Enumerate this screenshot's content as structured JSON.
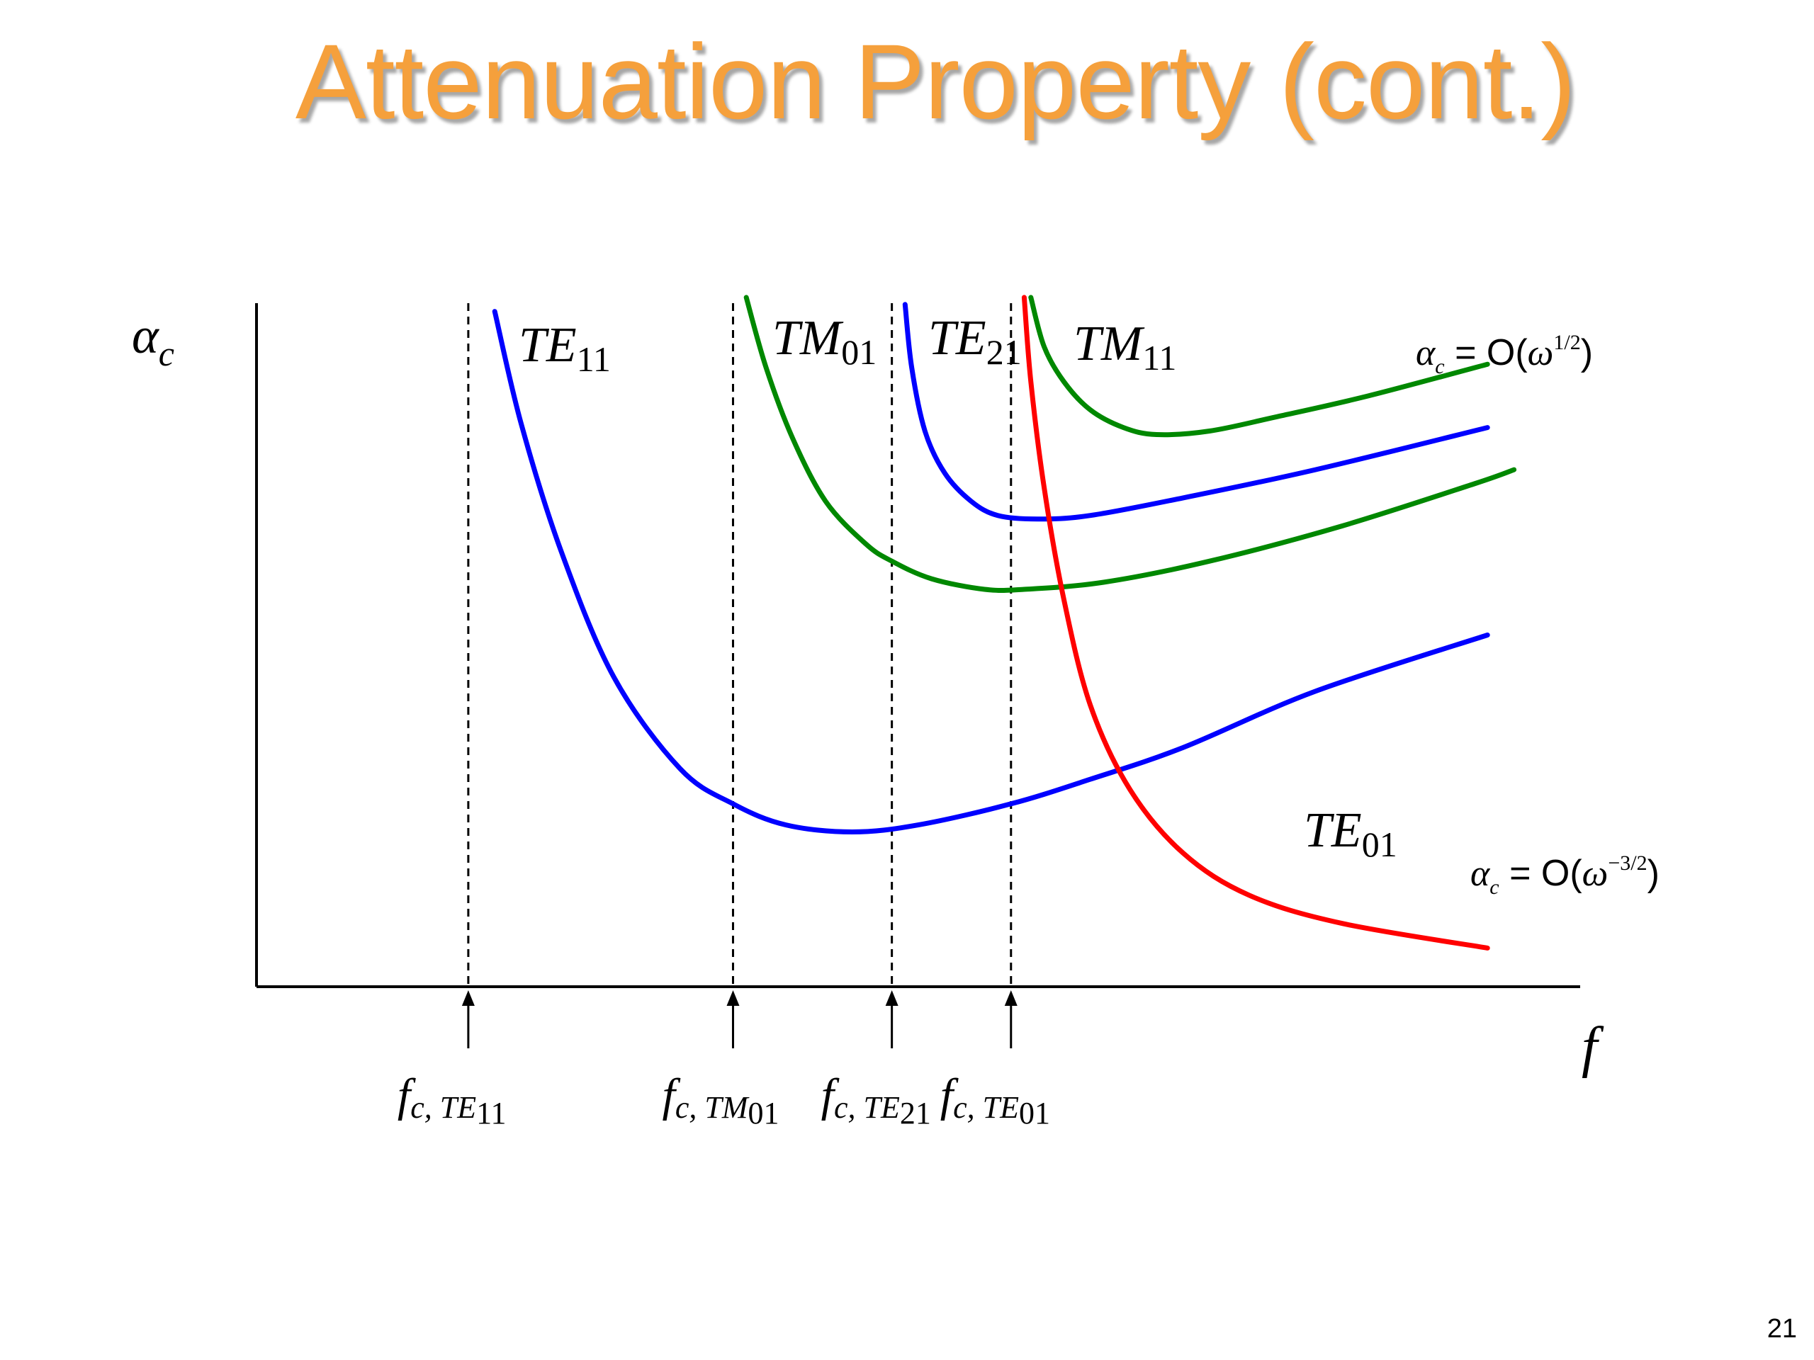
{
  "slide": {
    "title": "Attenuation Property (cont.)",
    "page_number": "21"
  },
  "chart_data": {
    "type": "line",
    "title": "",
    "xlabel": "f",
    "ylabel": "αc",
    "grid": false,
    "xlim": [
      0,
      10
    ],
    "ylim": [
      0,
      10
    ],
    "cutoffs": [
      {
        "name": "fc,TE11",
        "x": 1.6,
        "label_main": "f",
        "label_sub": "c, TE",
        "label_subsub": "11"
      },
      {
        "name": "fc,TM01",
        "x": 3.6,
        "label_main": "f",
        "label_sub": "c, TM",
        "label_subsub": "01"
      },
      {
        "name": "fc,TE21",
        "x": 4.8,
        "label_main": "f",
        "label_sub": "c, TE",
        "label_subsub": "21"
      },
      {
        "name": "fc,TE01",
        "x": 5.7,
        "label_main": "f",
        "label_sub": "c, TE",
        "label_subsub": "01"
      }
    ],
    "series": [
      {
        "name": "TE11",
        "label_main": "TE",
        "label_sub": "11",
        "color": "#0000FF",
        "x": [
          1.8,
          2.0,
          2.3,
          2.7,
          3.2,
          3.6,
          4.0,
          4.5,
          5.0,
          5.7,
          6.3,
          7.0,
          8.0,
          9.3
        ],
        "y": [
          9.6,
          8.0,
          6.2,
          4.4,
          3.1,
          2.6,
          2.3,
          2.2,
          2.3,
          2.6,
          2.95,
          3.4,
          4.2,
          5.0
        ]
      },
      {
        "name": "TM01",
        "label_main": "TM",
        "label_sub": "01",
        "color": "#008800",
        "x": [
          3.7,
          3.85,
          4.05,
          4.3,
          4.6,
          4.8,
          5.1,
          5.5,
          5.8,
          6.4,
          7.2,
          8.2,
          9.2,
          9.5
        ],
        "y": [
          9.8,
          8.8,
          7.8,
          6.9,
          6.3,
          6.05,
          5.8,
          5.65,
          5.65,
          5.75,
          6.05,
          6.55,
          7.15,
          7.35
        ]
      },
      {
        "name": "TE21",
        "label_main": "TE",
        "label_sub": "21",
        "color": "#0000FF",
        "x": [
          4.9,
          4.95,
          5.05,
          5.2,
          5.4,
          5.6,
          5.9,
          6.3,
          7.0,
          8.0,
          9.3
        ],
        "y": [
          9.7,
          8.8,
          7.9,
          7.3,
          6.9,
          6.7,
          6.65,
          6.7,
          6.95,
          7.35,
          7.95
        ]
      },
      {
        "name": "TM11",
        "label_main": "TM",
        "label_sub": "11",
        "color": "#008800",
        "x": [
          5.85,
          5.95,
          6.1,
          6.3,
          6.55,
          6.8,
          7.2,
          7.7,
          8.4,
          9.3
        ],
        "y": [
          9.8,
          9.1,
          8.6,
          8.2,
          7.95,
          7.85,
          7.9,
          8.1,
          8.4,
          8.85
        ]
      },
      {
        "name": "TE01",
        "label_main": "TE",
        "label_sub": "01",
        "color": "#FF0000",
        "x": [
          5.8,
          5.85,
          5.95,
          6.1,
          6.3,
          6.6,
          7.0,
          7.5,
          8.2,
          9.3
        ],
        "y": [
          9.8,
          8.6,
          7.1,
          5.5,
          4.0,
          2.8,
          1.9,
          1.3,
          0.9,
          0.55
        ]
      }
    ],
    "annotations": [
      {
        "name": "high-frequency-trend",
        "main": "α",
        "sub": "c",
        "mid": " = O(",
        "omega": "ω",
        "exp": "1/2",
        "close": ")"
      },
      {
        "name": "te01-trend",
        "main": "α",
        "sub": "c",
        "mid": " = O(",
        "omega": "ω",
        "exp": "−3/2",
        "close": ")"
      }
    ],
    "labels": {
      "y_main": "α",
      "y_sub": "c",
      "x_main": "f"
    }
  }
}
